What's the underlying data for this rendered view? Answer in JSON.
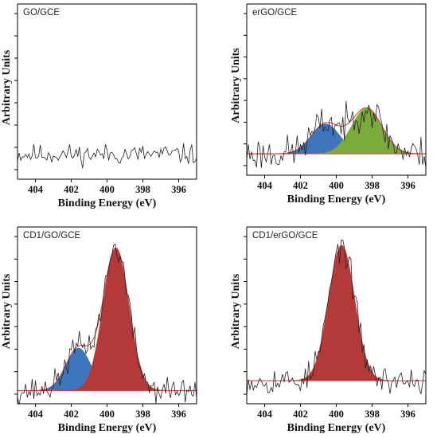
{
  "chart_data": [
    {
      "type": "line",
      "panel_label": "GO/GCE",
      "xlabel": "Binding Energy (eV)",
      "ylabel": "Arbitrary Units",
      "xlim": [
        405,
        395
      ],
      "ylim": [
        -0.15,
        1.05
      ],
      "xticks": [
        404,
        402,
        400,
        398,
        396
      ],
      "noise": 0.035,
      "baseline": 0.02,
      "seed": 11,
      "envelope": false,
      "peaks": []
    },
    {
      "type": "line",
      "panel_label": "erGO/GCE",
      "xlabel": "Binding Energy (eV)",
      "ylabel": "Arbitrary Units",
      "xlim": [
        405,
        395
      ],
      "ylim": [
        -0.15,
        1.05
      ],
      "xticks": [
        404,
        402,
        400,
        398,
        396
      ],
      "noise": 0.06,
      "baseline": 0.0,
      "seed": 23,
      "envelope": true,
      "peaks": [
        {
          "center": 400.6,
          "height": 0.21,
          "sigma": 0.8,
          "color": "#3d76bd"
        },
        {
          "center": 398.3,
          "height": 0.32,
          "sigma": 0.85,
          "color": "#7cab3c"
        }
      ]
    },
    {
      "type": "line",
      "panel_label": "CD1/GO/GCE",
      "xlabel": "Binding Energy (eV)",
      "ylabel": "Arbitrary Units",
      "xlim": [
        405,
        395
      ],
      "ylim": [
        -0.08,
        1.0
      ],
      "xticks": [
        404,
        402,
        400,
        398,
        396
      ],
      "noise": 0.04,
      "baseline": 0.0,
      "seed": 37,
      "envelope": true,
      "peaks": [
        {
          "center": 401.6,
          "height": 0.26,
          "sigma": 0.7,
          "color": "#3d76bd"
        },
        {
          "center": 399.5,
          "height": 0.87,
          "sigma": 0.72,
          "color": "#b43a3a"
        }
      ]
    },
    {
      "type": "line",
      "panel_label": "CD1/erGO/GCE",
      "xlabel": "Binding Energy (eV)",
      "ylabel": "Arbitrary Units",
      "xlim": [
        405,
        395
      ],
      "ylim": [
        -0.15,
        1.0
      ],
      "xticks": [
        404,
        402,
        400,
        398,
        396
      ],
      "noise": 0.045,
      "baseline": 0.0,
      "seed": 53,
      "envelope": true,
      "peaks": [
        {
          "center": 399.7,
          "height": 0.88,
          "sigma": 0.72,
          "color": "#b43a3a"
        }
      ]
    }
  ]
}
